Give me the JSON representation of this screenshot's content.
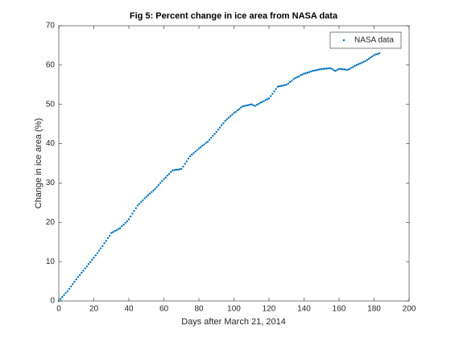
{
  "chart_data": {
    "type": "scatter",
    "title": "Fig 5: Percent change in ice area from NASA data",
    "x_label": "Days after March 21, 2014",
    "y_label": "Change in ice area (%)",
    "legend_position": "upper right",
    "xlim": [
      0,
      200
    ],
    "ylim": [
      0,
      70
    ],
    "xticks": [
      0,
      20,
      40,
      60,
      80,
      100,
      120,
      140,
      160,
      180,
      200
    ],
    "yticks": [
      0,
      10,
      20,
      30,
      40,
      50,
      60,
      70
    ],
    "series": [
      {
        "name": "NASA data",
        "color": "#0072bd",
        "x": [
          0,
          1,
          2,
          3,
          4,
          5,
          6,
          7,
          8,
          9,
          10,
          11,
          12,
          13,
          14,
          15,
          16,
          17,
          18,
          19,
          20,
          21,
          22,
          23,
          24,
          25,
          26,
          27,
          28,
          29,
          30,
          31,
          32,
          33,
          34,
          35,
          36,
          37,
          38,
          39,
          40,
          41,
          42,
          43,
          44,
          45,
          46,
          47,
          48,
          49,
          50,
          51,
          52,
          53,
          54,
          55,
          56,
          57,
          58,
          59,
          60,
          61,
          62,
          63,
          64,
          65,
          66,
          67,
          68,
          69,
          70,
          71,
          72,
          73,
          74,
          75,
          76,
          77,
          78,
          79,
          80,
          81,
          82,
          83,
          84,
          85,
          86,
          87,
          88,
          89,
          90,
          91,
          92,
          93,
          94,
          95,
          96,
          97,
          98,
          99,
          100,
          101,
          102,
          103,
          104,
          105,
          106,
          107,
          108,
          109,
          110,
          111,
          112,
          113,
          114,
          115,
          116,
          117,
          118,
          119,
          120,
          121,
          122,
          123,
          124,
          125,
          126,
          127,
          128,
          129,
          130,
          131,
          132,
          133,
          134,
          135,
          136,
          137,
          138,
          139,
          140,
          141,
          142,
          143,
          144,
          145,
          146,
          147,
          148,
          149,
          150,
          151,
          152,
          153,
          154,
          155,
          156,
          157,
          158,
          159,
          160,
          161,
          162,
          163,
          164,
          165,
          166,
          167,
          168,
          169,
          170,
          171,
          172,
          173,
          174,
          175,
          176,
          177,
          178,
          179,
          180,
          181,
          182,
          183
        ],
        "values": [
          0,
          0.5,
          1,
          1.5,
          2,
          2.5,
          3.1,
          3.7,
          4.3,
          4.9,
          5.5,
          6.1,
          6.6,
          7.2,
          7.7,
          8.3,
          8.8,
          9.4,
          9.9,
          10.5,
          11,
          11.6,
          12.2,
          12.8,
          13.4,
          14,
          14.7,
          15.3,
          16,
          16.6,
          17.3,
          17.5,
          17.8,
          18,
          18.3,
          18.5,
          19,
          19.4,
          19.9,
          20.3,
          20.8,
          21.5,
          22.2,
          22.9,
          23.6,
          24.3,
          24.7,
          25.2,
          25.6,
          26.1,
          26.5,
          26.9,
          27.3,
          27.7,
          28.1,
          28.5,
          29,
          29.5,
          30,
          30.5,
          31,
          31.4,
          31.9,
          32.3,
          32.8,
          33.2,
          33.3,
          33.4,
          33.4,
          33.5,
          33.6,
          34.2,
          34.9,
          35.5,
          36.2,
          36.8,
          37.2,
          37.6,
          38,
          38.4,
          38.8,
          39.1,
          39.5,
          39.8,
          40.2,
          40.5,
          41,
          41.5,
          42,
          42.5,
          43,
          43.6,
          44.1,
          44.7,
          45.2,
          45.8,
          46.2,
          46.6,
          47,
          47.4,
          47.8,
          48.1,
          48.5,
          48.8,
          49.2,
          49.5,
          49.6,
          49.7,
          49.8,
          49.9,
          50,
          49.8,
          49.6,
          49.9,
          50.1,
          50.4,
          50.6,
          50.8,
          51.1,
          51.3,
          51.5,
          52.1,
          52.7,
          53.3,
          53.9,
          54.5,
          54.6,
          54.7,
          54.8,
          54.9,
          55,
          55.3,
          55.7,
          56,
          56.4,
          56.7,
          56.9,
          57.1,
          57.4,
          57.6,
          57.8,
          57.9,
          58.1,
          58.2,
          58.4,
          58.5,
          58.6,
          58.7,
          58.8,
          58.9,
          59,
          59,
          59.1,
          59.1,
          59.2,
          59.2,
          59,
          58.7,
          58.5,
          58.8,
          59,
          59,
          58.9,
          58.9,
          58.8,
          58.8,
          59,
          59.3,
          59.5,
          59.8,
          60,
          60.2,
          60.4,
          60.6,
          60.8,
          61,
          61.3,
          61.6,
          61.9,
          62.2,
          62.5,
          62.7,
          62.8,
          63
        ]
      }
    ]
  }
}
